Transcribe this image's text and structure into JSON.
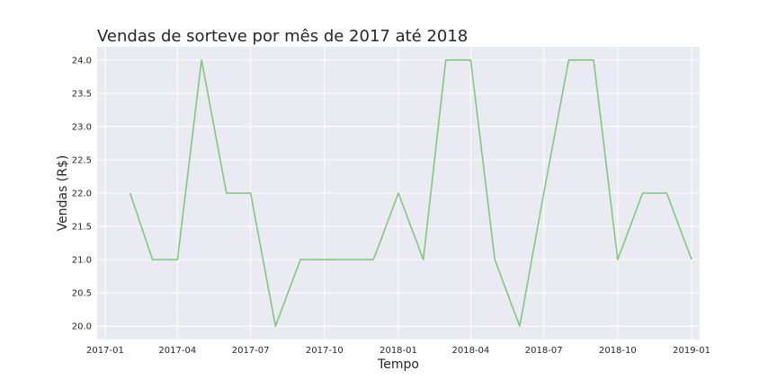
{
  "chart_data": {
    "type": "line",
    "title": "Vendas de sorteve por mês de 2017 até 2018",
    "xlabel": "Tempo",
    "ylabel": "Vendas (R$)",
    "x": [
      "2017-02-01",
      "2017-03-01",
      "2017-04-01",
      "2017-05-01",
      "2017-06-01",
      "2017-07-01",
      "2017-08-01",
      "2017-09-01",
      "2017-10-01",
      "2017-11-01",
      "2017-12-01",
      "2018-01-01",
      "2018-02-01",
      "2018-03-01",
      "2018-04-01",
      "2018-05-01",
      "2018-06-01",
      "2018-07-01",
      "2018-08-01",
      "2018-09-01",
      "2018-10-01",
      "2018-11-01",
      "2018-12-01",
      "2019-01-01"
    ],
    "series": [
      {
        "values": [
          22,
          21,
          21,
          24,
          22,
          22,
          20,
          21,
          21,
          21,
          21,
          22,
          21,
          24,
          24,
          21,
          20,
          22,
          24,
          24,
          21,
          22,
          22,
          21
        ]
      }
    ],
    "xlim": [
      "2016-12-22",
      "2019-01-11"
    ],
    "ylim": [
      19.8,
      24.2
    ],
    "x_ticks": [
      "2017-01",
      "2017-04",
      "2017-07",
      "2017-10",
      "2018-01",
      "2018-04",
      "2018-07",
      "2018-10",
      "2019-01"
    ],
    "y_ticks": [
      20.0,
      20.5,
      21.0,
      21.5,
      22.0,
      22.5,
      23.0,
      23.5,
      24.0
    ],
    "grid": true,
    "colors": {
      "line": "#7fc97f",
      "plot_background": "#eaeaf2",
      "grid": "#ffffff"
    }
  }
}
